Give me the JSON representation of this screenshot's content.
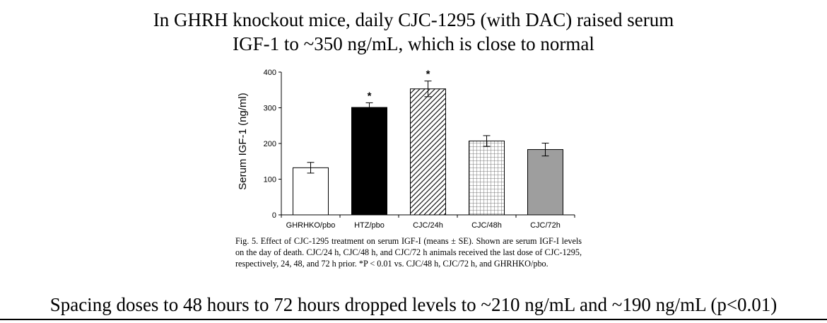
{
  "headline": {
    "line1": "In GHRH knockout mice, daily CJC-1295 (with DAC) raised serum",
    "line2": "IGF-1 to ~350 ng/mL, which is close to normal"
  },
  "chart_data": {
    "type": "bar",
    "title": "",
    "xlabel": "",
    "ylabel": "Serum IGF-1 (ng/ml)",
    "ylim": [
      0,
      400
    ],
    "yticks": [
      0,
      100,
      200,
      300,
      400
    ],
    "categories": [
      "GHRHKO/pbo",
      "HTZ/pbo",
      "CJC/24h",
      "CJC/48h",
      "CJC/72h"
    ],
    "values": [
      132,
      301,
      353,
      207,
      183
    ],
    "errors": [
      15,
      13,
      22,
      15,
      18
    ],
    "significant": [
      false,
      true,
      true,
      false,
      false
    ],
    "significance_marker": "*",
    "fills": [
      "white",
      "solid-black",
      "diagonal-hatch",
      "grid-hatch",
      "solid-gray"
    ],
    "colors": {
      "black": "#000000",
      "gray": "#9e9e9e",
      "white": "#ffffff"
    },
    "grid": false,
    "legend": "none"
  },
  "caption": {
    "label": "Fig. 5.",
    "text": "Effect of CJC-1295 treatment on serum IGF-I (means ± SE). Shown are serum IGF-I levels on the day of death. CJC/24 h, CJC/48 h, and CJC/72 h animals received the last dose of CJC-1295, respectively, 24, 48, and 72 h prior. *P < 0.01 vs. CJC/48 h, CJC/72 h, and GHRHKO/pbo."
  },
  "footer": {
    "text": "Spacing doses to 48 hours to 72 hours dropped levels to ~210 ng/mL and ~190 ng/mL (p<0.01)"
  }
}
